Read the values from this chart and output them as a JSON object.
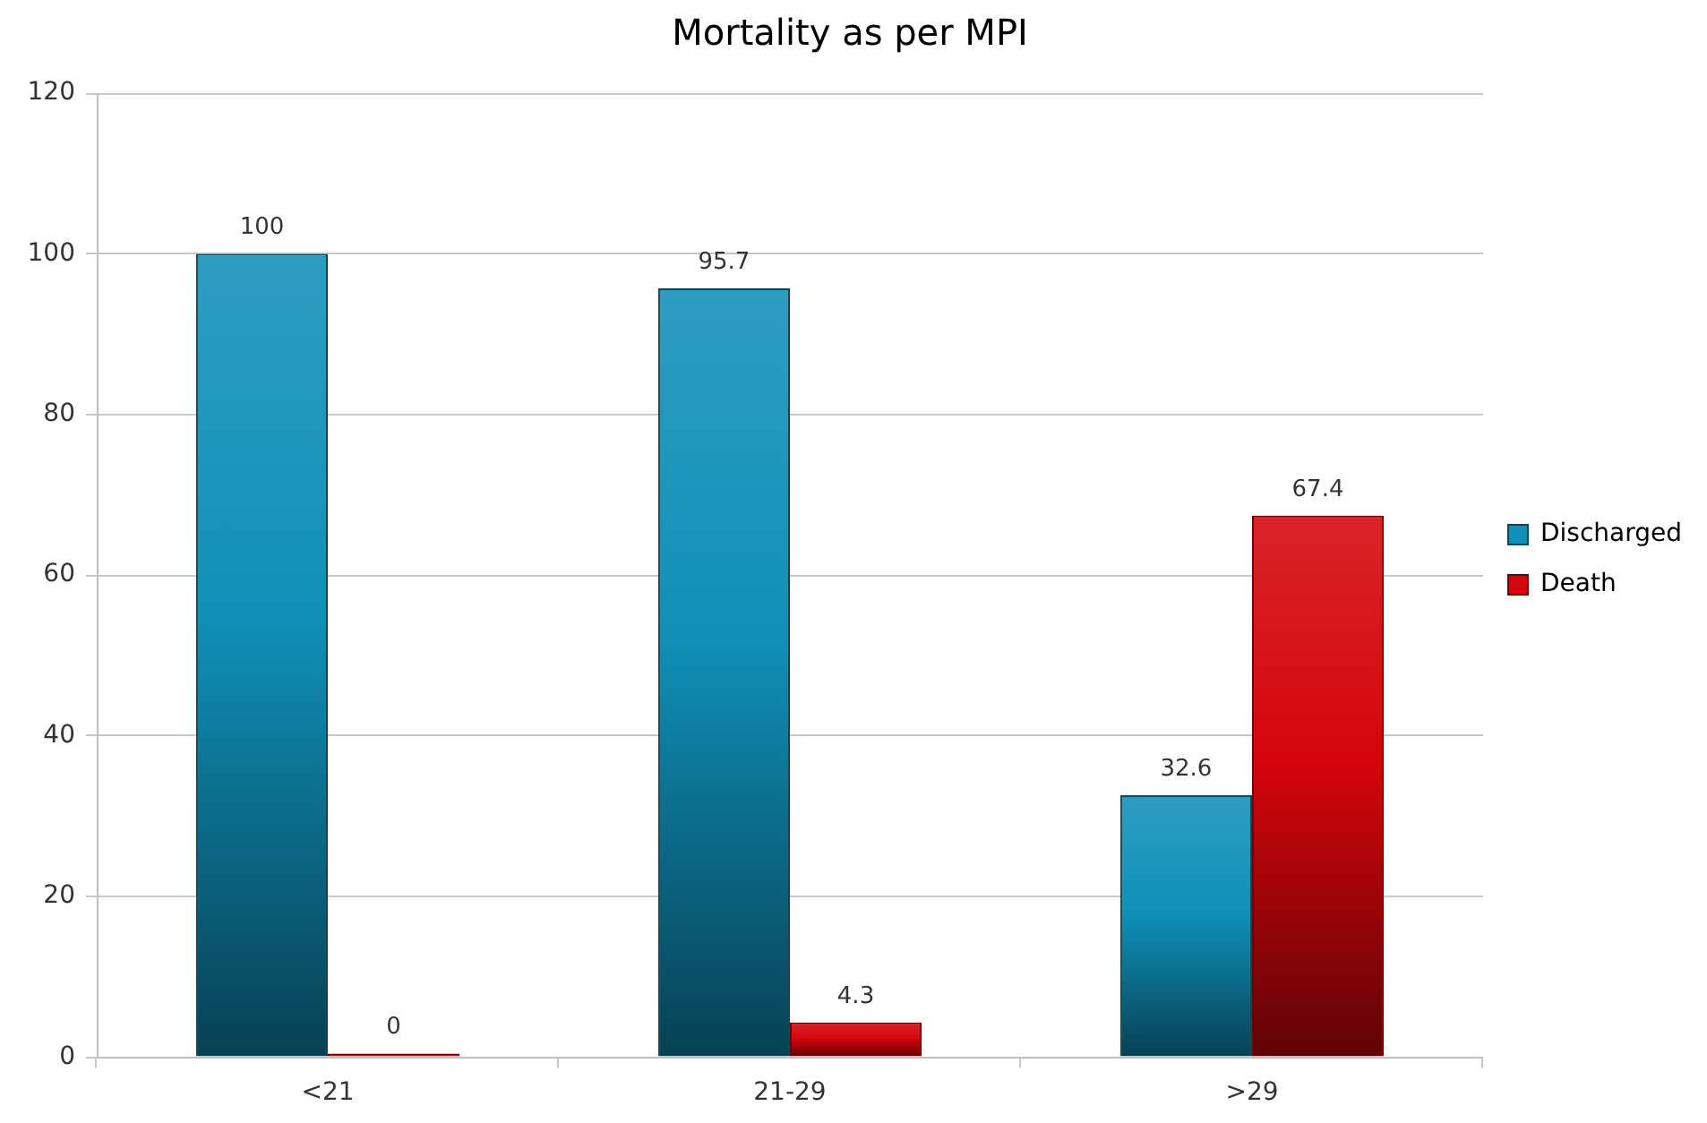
{
  "chart_data": {
    "type": "bar",
    "title": "Mortality as per MPI",
    "categories": [
      "<21",
      "21-29",
      ">29"
    ],
    "series": [
      {
        "name": "Discharged",
        "color": "#1090b8",
        "values": [
          100,
          95.7,
          32.6
        ]
      },
      {
        "name": "Death",
        "color": "#d4060c",
        "values": [
          0,
          4.3,
          67.4
        ]
      }
    ],
    "ylim": [
      0,
      120
    ],
    "yticks": [
      0,
      20,
      40,
      60,
      80,
      100,
      120
    ],
    "grid": "y",
    "legend": "right",
    "data_labels": true
  }
}
